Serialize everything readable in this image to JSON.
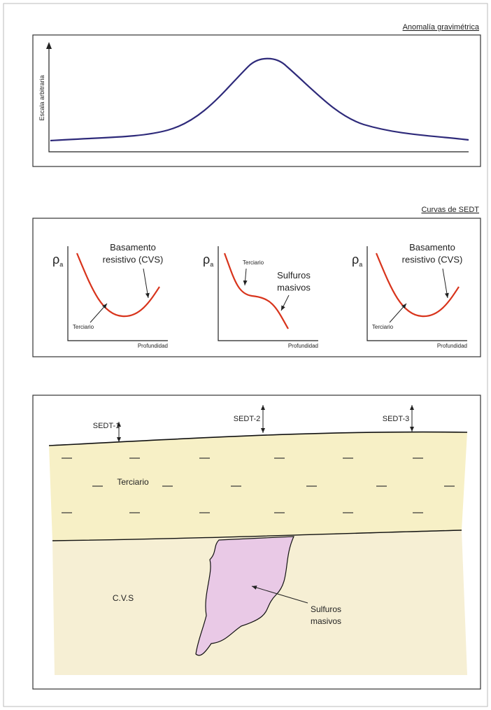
{
  "gravity_panel": {
    "title": "Anomalía gravimétrica",
    "y_axis_label": "Escala arbitraria"
  },
  "sedt_panel": {
    "title": "Curvas de SEDT",
    "curves": [
      {
        "y_symbol": "ρ",
        "y_subscript": "a",
        "x_axis_label": "Profundidad",
        "labels": [
          {
            "lines": [
              "Basamento",
              "resistivo (CVS)"
            ]
          },
          {
            "lines": [
              "Terciario"
            ]
          }
        ]
      },
      {
        "y_symbol": "ρ",
        "y_subscript": "a",
        "x_axis_label": "Profundidad",
        "labels": [
          {
            "lines": [
              "Terciario"
            ]
          },
          {
            "lines": [
              "Sulfuros",
              "masivos"
            ]
          }
        ]
      },
      {
        "y_symbol": "ρ",
        "y_subscript": "a",
        "x_axis_label": "Profundidad",
        "labels": [
          {
            "lines": [
              "Basamento",
              "resistivo (CVS)"
            ]
          },
          {
            "lines": [
              "Terciario"
            ]
          }
        ]
      }
    ]
  },
  "section": {
    "soundings": [
      "SEDT-1",
      "SEDT-2",
      "SEDT-3"
    ],
    "layers": [
      "Terciario",
      "C.V.S"
    ],
    "body": {
      "lines": [
        "Sulfuros",
        "masivos"
      ]
    }
  }
}
